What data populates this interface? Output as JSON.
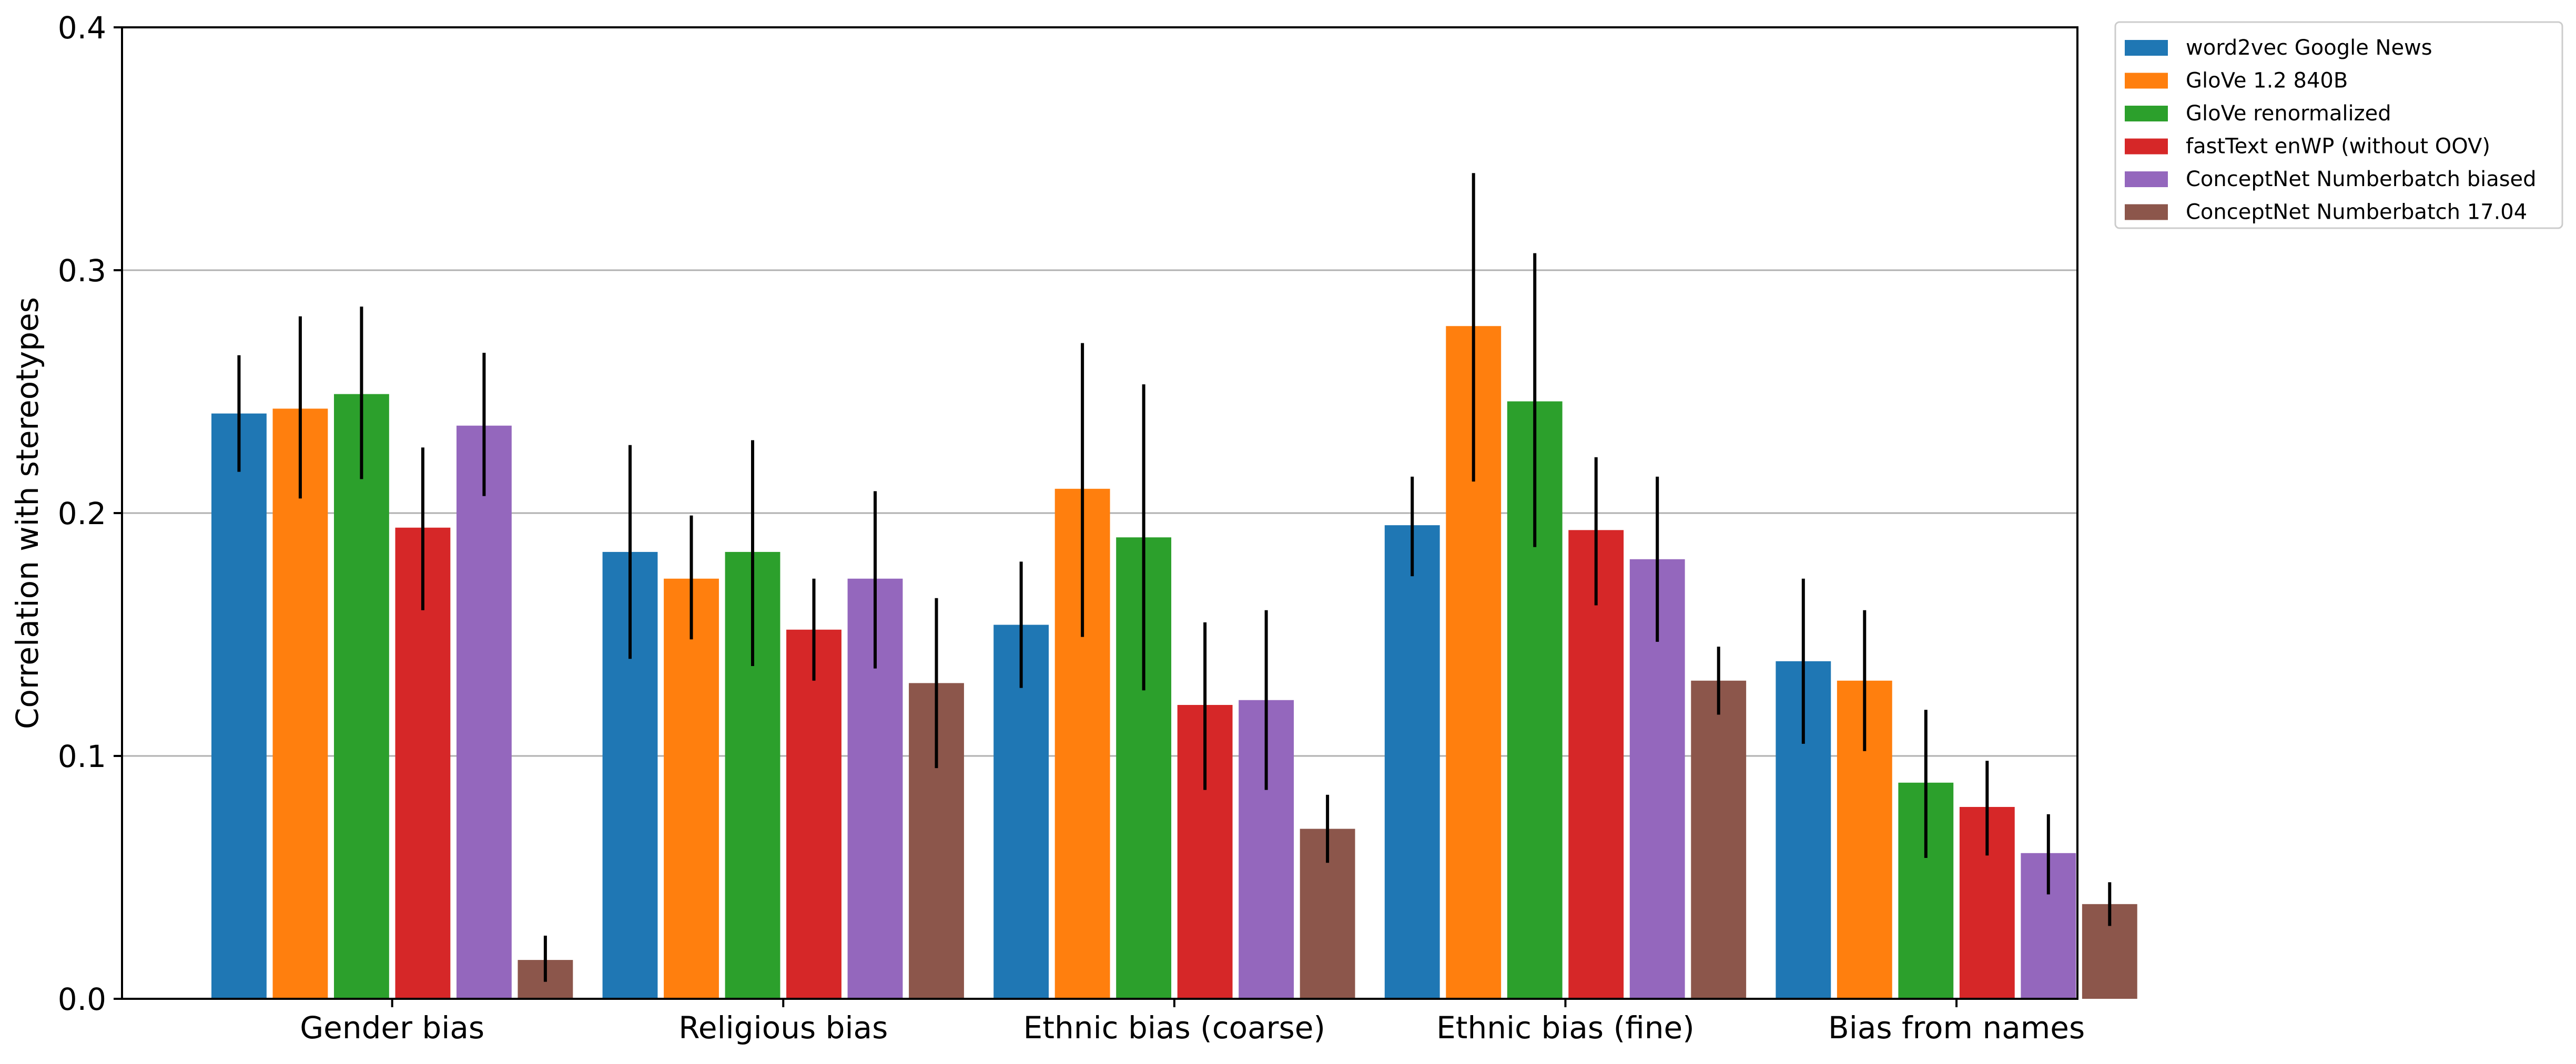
{
  "chart_data": {
    "type": "bar",
    "title": "",
    "xlabel": "",
    "ylabel": "Correlation with stereotypes",
    "ylim": [
      0,
      0.4
    ],
    "yticks": [
      0.0,
      0.1,
      0.2,
      0.3,
      0.4
    ],
    "ytick_labels": [
      "0.0",
      "0.1",
      "0.2",
      "0.3",
      "0.4"
    ],
    "grid": "horizontal",
    "legend_position": "outside-top-right",
    "categories": [
      "Gender bias",
      "Religious bias",
      "Ethnic bias (coarse)",
      "Ethnic bias (fine)",
      "Bias from names"
    ],
    "series": [
      {
        "name": "word2vec Google News",
        "color": "#1f77b4",
        "values": [
          0.241,
          0.184,
          0.154,
          0.195,
          0.139
        ],
        "err_low": [
          0.217,
          0.14,
          0.128,
          0.174,
          0.105
        ],
        "err_high": [
          0.265,
          0.228,
          0.18,
          0.215,
          0.173
        ]
      },
      {
        "name": "GloVe 1.2 840B",
        "color": "#ff7f0e",
        "values": [
          0.243,
          0.173,
          0.21,
          0.277,
          0.131
        ],
        "err_low": [
          0.206,
          0.148,
          0.149,
          0.213,
          0.102
        ],
        "err_high": [
          0.281,
          0.199,
          0.27,
          0.34,
          0.16
        ]
      },
      {
        "name": "GloVe renormalized",
        "color": "#2ca02c",
        "values": [
          0.249,
          0.184,
          0.19,
          0.246,
          0.089
        ],
        "err_low": [
          0.214,
          0.137,
          0.127,
          0.186,
          0.058
        ],
        "err_high": [
          0.285,
          0.23,
          0.253,
          0.307,
          0.119
        ]
      },
      {
        "name": "fastText enWP (without OOV)",
        "color": "#d62728",
        "values": [
          0.194,
          0.152,
          0.121,
          0.193,
          0.079
        ],
        "err_low": [
          0.16,
          0.131,
          0.086,
          0.162,
          0.059
        ],
        "err_high": [
          0.227,
          0.173,
          0.155,
          0.223,
          0.098
        ]
      },
      {
        "name": "ConceptNet Numberbatch biased",
        "color": "#9467bd",
        "values": [
          0.236,
          0.173,
          0.123,
          0.181,
          0.06
        ],
        "err_low": [
          0.207,
          0.136,
          0.086,
          0.147,
          0.043
        ],
        "err_high": [
          0.266,
          0.209,
          0.16,
          0.215,
          0.076
        ]
      },
      {
        "name": "ConceptNet Numberbatch 17.04",
        "color": "#8c564b",
        "values": [
          0.016,
          0.13,
          0.07,
          0.131,
          0.039
        ],
        "err_low": [
          0.007,
          0.095,
          0.056,
          0.117,
          0.03
        ],
        "err_high": [
          0.026,
          0.165,
          0.084,
          0.145,
          0.048
        ]
      }
    ],
    "colors": {
      "grid": "#b0b0b0",
      "axes": "#000000",
      "errorbar": "#000000",
      "legend_border": "#cccccc"
    }
  }
}
